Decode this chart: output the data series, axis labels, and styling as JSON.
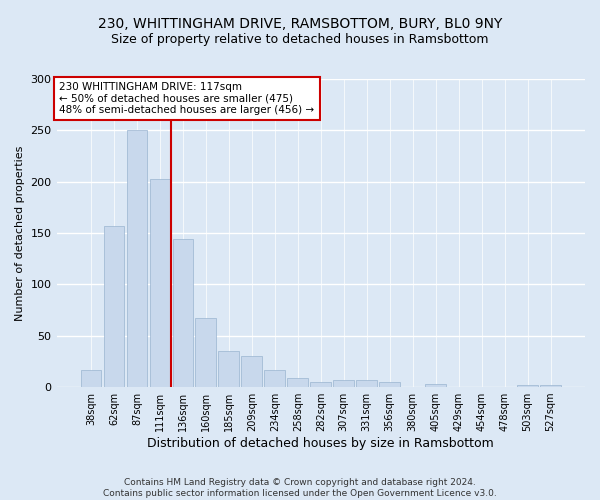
{
  "title1": "230, WHITTINGHAM DRIVE, RAMSBOTTOM, BURY, BL0 9NY",
  "title2": "Size of property relative to detached houses in Ramsbottom",
  "xlabel": "Distribution of detached houses by size in Ramsbottom",
  "ylabel": "Number of detached properties",
  "footer1": "Contains HM Land Registry data © Crown copyright and database right 2024.",
  "footer2": "Contains public sector information licensed under the Open Government Licence v3.0.",
  "annotation_line1": "230 WHITTINGHAM DRIVE: 117sqm",
  "annotation_line2": "← 50% of detached houses are smaller (475)",
  "annotation_line3": "48% of semi-detached houses are larger (456) →",
  "categories": [
    "38sqm",
    "62sqm",
    "87sqm",
    "111sqm",
    "136sqm",
    "160sqm",
    "185sqm",
    "209sqm",
    "234sqm",
    "258sqm",
    "282sqm",
    "307sqm",
    "331sqm",
    "356sqm",
    "380sqm",
    "405sqm",
    "429sqm",
    "454sqm",
    "478sqm",
    "503sqm",
    "527sqm"
  ],
  "values": [
    17,
    157,
    250,
    203,
    144,
    67,
    35,
    30,
    17,
    9,
    5,
    7,
    7,
    5,
    0,
    3,
    0,
    0,
    0,
    2,
    2
  ],
  "bar_color": "#c8d8ec",
  "bar_edge_color": "#9ab4d0",
  "red_line_x": 3.5,
  "ylim": [
    0,
    300
  ],
  "yticks": [
    0,
    50,
    100,
    150,
    200,
    250,
    300
  ],
  "background_color": "#dce8f5",
  "plot_bg_color": "#dce8f5",
  "grid_color": "#ffffff",
  "title_fontsize": 10,
  "subtitle_fontsize": 9,
  "annot_box_color": "#ffffff",
  "annot_box_edgecolor": "#cc0000",
  "red_line_color": "#cc0000",
  "footer_color": "#333333"
}
